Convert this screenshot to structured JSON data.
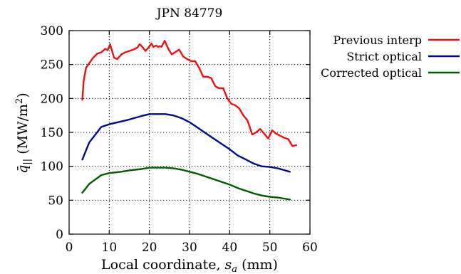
{
  "chart_data": {
    "type": "line",
    "title": "JPN 84779",
    "xlabel": "Local coordinate, s_a (mm)",
    "ylabel": "q̄_|| (MW/m²)",
    "xlim": [
      0,
      60
    ],
    "ylim": [
      0,
      300
    ],
    "xticks": [
      0,
      10,
      20,
      30,
      40,
      50,
      60
    ],
    "yticks": [
      0,
      50,
      100,
      150,
      200,
      250,
      300
    ],
    "grid": true,
    "legend_position": "outside-right-top",
    "series": [
      {
        "name": "Previous interp",
        "color": "#ee1111",
        "x": [
          3.3,
          3.6,
          4.2,
          5.0,
          6.0,
          7.0,
          8.0,
          9.0,
          9.6,
          10.2,
          10.7,
          11.2,
          12.0,
          13.0,
          14.0,
          15.0,
          16.0,
          17.0,
          17.6,
          18.4,
          19.0,
          19.8,
          20.5,
          21.0,
          21.6,
          22.2,
          22.6,
          23.0,
          23.8,
          24.8,
          25.6,
          26.4,
          27.4,
          28.4,
          29.4,
          30.4,
          31.4,
          32.4,
          33.4,
          34.4,
          35.4,
          36.4,
          37.4,
          38.4,
          39.4,
          40.4,
          41.4,
          42.4,
          43.4,
          44.4,
          45.0,
          45.6,
          46.6,
          47.6,
          48.6,
          49.6,
          50.6,
          51.6,
          52.6,
          53.6,
          54.6,
          55.6,
          56.6
        ],
        "y": [
          198,
          225,
          245,
          252,
          260,
          266,
          268,
          273,
          271,
          280,
          270,
          260,
          258,
          265,
          268,
          270,
          272,
          275,
          280,
          275,
          270,
          275,
          281,
          276,
          278,
          276,
          277,
          276,
          285,
          272,
          265,
          268,
          272,
          262,
          258,
          255,
          255,
          245,
          232,
          232,
          230,
          218,
          215,
          215,
          200,
          192,
          190,
          185,
          175,
          168,
          158,
          147,
          150,
          155,
          148,
          141,
          153,
          148,
          145,
          142,
          140,
          130,
          131
        ]
      },
      {
        "name": "Strict optical",
        "color": "#000a8c",
        "x": [
          3.3,
          5.0,
          8.0,
          10.0,
          13.0,
          15.0,
          18.0,
          20.0,
          22.0,
          24.0,
          26.0,
          28.0,
          30.0,
          32.0,
          34.0,
          36.0,
          38.0,
          40.0,
          42.0,
          44.0,
          46.0,
          48.0,
          50.0,
          52.0,
          55.0
        ],
        "y": [
          110,
          135,
          158,
          162,
          166,
          169,
          174,
          177,
          177,
          177,
          175,
          171,
          165,
          157,
          149,
          141,
          133,
          125,
          116,
          110,
          104,
          100,
          99,
          97,
          92
        ]
      },
      {
        "name": "Corrected optical",
        "color": "#005c00",
        "x": [
          3.3,
          5.0,
          8.0,
          10.0,
          13.0,
          15.0,
          18.0,
          20.0,
          22.0,
          24.0,
          26.0,
          28.0,
          30.0,
          32.0,
          34.0,
          36.0,
          38.0,
          40.0,
          42.0,
          44.0,
          46.0,
          48.0,
          50.0,
          52.0,
          55.0
        ],
        "y": [
          61,
          74,
          87,
          90,
          92,
          94,
          96,
          98,
          98,
          98,
          97,
          95,
          92,
          89,
          85,
          81,
          77,
          73,
          68,
          64,
          60,
          57,
          55,
          54,
          51
        ]
      }
    ]
  }
}
